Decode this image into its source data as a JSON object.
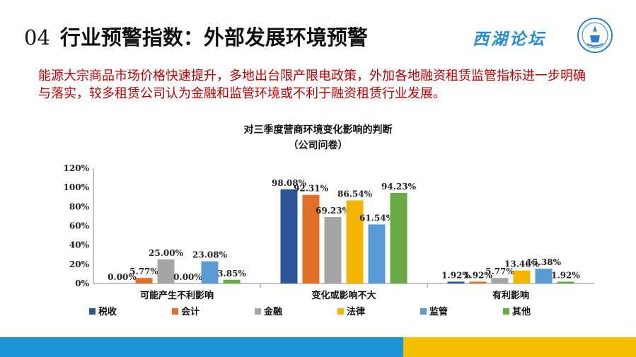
{
  "header": {
    "number": "04",
    "title": "行业预警指数：外部发展环境预警",
    "brand": "西湖论坛"
  },
  "intro": "能源大宗商品市场价格快速提升，多地出台限产限电政策，外加各地融资租赁监管指标进一步明确与落实，较多租赁公司认为金融和监管环境或不利于融资租赁行业发展。",
  "colors": {
    "title": "#111111",
    "intro": "#c00000",
    "brand": "#2a8bd6",
    "footer_left": "#1e93d6",
    "footer_right": "#f5c000"
  },
  "chart_data": {
    "type": "bar",
    "title": "对三季度营商环境变化影响的判断",
    "subtitle": "（公司问卷）",
    "categories": [
      "可能产生不利影响",
      "变化或影响不大",
      "有利影响"
    ],
    "series": [
      {
        "name": "税收",
        "color": "#2e5597",
        "values": [
          0.0,
          98.08,
          1.92
        ]
      },
      {
        "name": "会计",
        "color": "#e07028",
        "values": [
          5.77,
          92.31,
          1.92
        ]
      },
      {
        "name": "金融",
        "color": "#a5a5a5",
        "values": [
          25.0,
          69.23,
          5.77
        ]
      },
      {
        "name": "法律",
        "color": "#f5b400",
        "values": [
          0.0,
          86.54,
          13.46
        ]
      },
      {
        "name": "监管",
        "color": "#5b9bd5",
        "values": [
          23.08,
          61.54,
          15.38
        ]
      },
      {
        "name": "其他",
        "color": "#6aaa45",
        "values": [
          3.85,
          94.23,
          1.92
        ]
      }
    ],
    "y_ticks": [
      "0%",
      "20%",
      "40%",
      "60%",
      "80%",
      "100%",
      "120%"
    ],
    "ylim": [
      0,
      120
    ],
    "value_suffix": "%",
    "grid": false,
    "legend_position": "bottom"
  }
}
